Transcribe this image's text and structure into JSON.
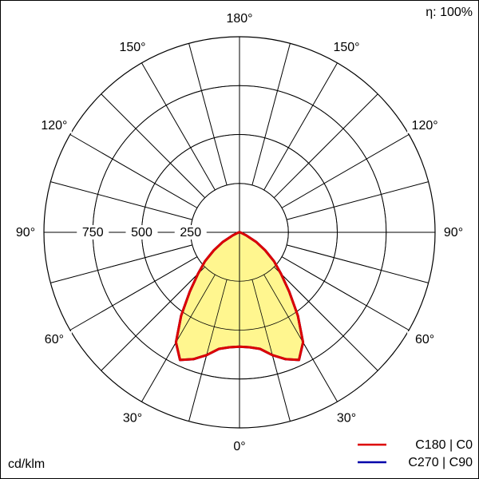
{
  "chart_data": {
    "type": "polar",
    "efficiency_label": "η: 100%",
    "unit_label": "cd/klm",
    "angles": [
      0,
      5,
      10,
      15,
      20,
      25,
      30,
      35,
      40,
      45,
      50,
      55,
      60,
      65,
      70,
      75,
      80,
      85,
      90
    ],
    "series": [
      {
        "name": "C270 | C90",
        "color": "#0000aa",
        "values": [
          585,
          590,
          605,
          650,
          690,
          720,
          650,
          520,
          395,
          300,
          230,
          160,
          100,
          40,
          15,
          8,
          5,
          2,
          0
        ]
      },
      {
        "name": "C180 | C0",
        "color": "#dd0000",
        "values": [
          585,
          590,
          605,
          650,
          690,
          720,
          650,
          520,
          395,
          300,
          230,
          160,
          100,
          40,
          15,
          8,
          5,
          2,
          0
        ]
      }
    ],
    "fill_color": "#fff68f",
    "rlim": [
      0,
      1000
    ],
    "rticks": [
      250,
      500,
      750
    ],
    "angle_ticks": [
      {
        "value": 0,
        "label": "0°"
      },
      {
        "value": 30,
        "label": "30°"
      },
      {
        "value": 60,
        "label": "60°"
      },
      {
        "value": 90,
        "label": "90°"
      },
      {
        "value": 120,
        "label": "120°"
      },
      {
        "value": 150,
        "label": "150°"
      },
      {
        "value": 180,
        "label": "180°"
      }
    ]
  }
}
